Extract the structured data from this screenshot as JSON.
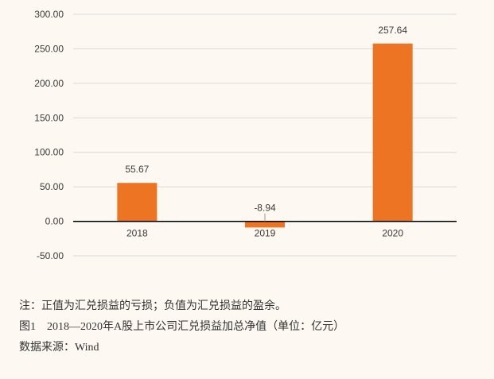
{
  "chart_data": {
    "type": "bar",
    "categories": [
      "2018",
      "2019",
      "2020"
    ],
    "values": [
      55.67,
      -8.94,
      257.64
    ],
    "value_labels": [
      "55.67",
      "-8.94",
      "257.64"
    ],
    "title": "",
    "xlabel": "",
    "ylabel": "",
    "ylim": [
      -50,
      300
    ],
    "yticks": [
      300,
      250,
      200,
      150,
      100,
      50,
      0,
      -50
    ],
    "ytick_labels": [
      "300.00",
      "250.00",
      "200.00",
      "150.00",
      "100.00",
      "50.00",
      "0.00",
      "-50.00"
    ],
    "grid": true,
    "legend": "none",
    "bar_color": "#ed7423",
    "grid_color": "#d9d9d9",
    "axis_color": "#000000"
  },
  "caption": {
    "note": "注：正值为汇兑损益的亏损；负值为汇兑损益的盈余。",
    "figure_title": "图1　2018—2020年A股上市公司汇兑损益加总净值（单位：亿元）",
    "source": "数据来源：Wind"
  }
}
